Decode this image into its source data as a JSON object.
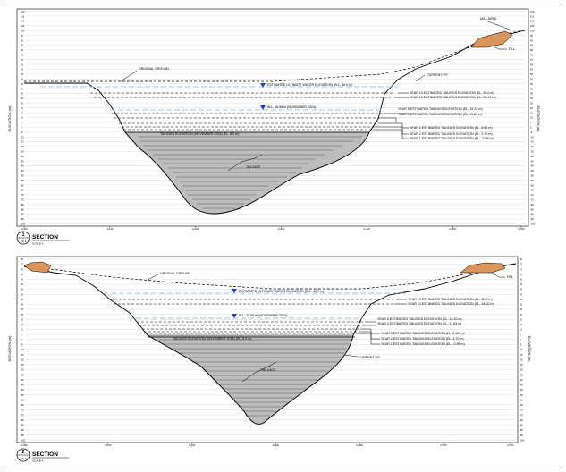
{
  "sections": [
    {
      "id": "1",
      "title": "SECTION",
      "ref": "FIG 1",
      "scale": "SCALE A",
      "y_axis_label": "ELEVATION (m)",
      "y_ticks": [
        "120",
        "115",
        "110",
        "105",
        "100",
        "95",
        "90",
        "85",
        "80",
        "75",
        "70",
        "65",
        "60",
        "55",
        "50",
        "45",
        "40",
        "35",
        "30",
        "25",
        "20",
        "15",
        "10",
        "5",
        "0",
        "-5",
        "-10",
        "-15",
        "-20",
        "-25",
        "-30",
        "-35",
        "-40",
        "-45",
        "-50",
        "-55",
        "-60",
        "-65",
        "-70",
        "-75",
        "-80",
        "-85",
        "-90",
        "-95",
        "-100"
      ],
      "x_ticks": [
        "0+000",
        "0+100",
        "0+200",
        "0+300",
        "0+400",
        "0+500",
        "0+520"
      ],
      "labels": {
        "original_ground": "ORIGINAL GROUND",
        "mill_area": "MILL AREA",
        "fill": "FILL",
        "current_pit": "CURRENT PIT",
        "ultimate_water": "ESTIMATED ULTIMATE WATER ELEVATION (W.L. 46.0 m)",
        "wl_nov": "W.L. 18.98 m (NOVEMBER 2024)",
        "tailings_nov": "TAILINGS ELEVATION (NOVEMBER 2024) (EL. 8.0 m)",
        "tailings": "TAILINGS"
      },
      "year_labels": [
        "YEAR 13 ESTIMATED TAILINGS ELEVATION (EL. 30.0 m)",
        "YEAR 10 ESTIMATED TAILINGS ELEVATION (EL. 28.00 m)",
        "YEAR 5 ESTIMATED TAILINGS ELEVATION (EL. 15.20 m)",
        "YEAR 4 ESTIMATED TAILINGS ELEVATION (EL. 11.63 m)",
        "YEAR 3 ESTIMATED TAILINGS ELEVATION (EL. 8.66 m)",
        "YEAR 2 ESTIMATED TAILINGS ELEVATION (EL. 3.70 m)",
        "YEAR 1 ESTIMATED TAILINGS ELEVATION (EL. -0.96 m)"
      ]
    },
    {
      "id": "2",
      "title": "SECTION",
      "ref": "FIG 2",
      "scale": "SCALE A",
      "y_axis_label": "ELEVATION (m)",
      "y_ticks": [
        "80",
        "75",
        "70",
        "65",
        "60",
        "55",
        "50",
        "45",
        "40",
        "35",
        "30",
        "25",
        "20",
        "15",
        "10",
        "5",
        "0",
        "-5",
        "-10",
        "-15",
        "-20",
        "-25",
        "-30",
        "-35",
        "-40",
        "-45",
        "-50",
        "-55",
        "-60",
        "-65",
        "-70",
        "-75",
        "-80",
        "-85",
        "-90",
        "-95",
        "-100"
      ],
      "x_ticks": [
        "0+000",
        "0+100",
        "0+200",
        "0+300",
        "0+400",
        "0+500",
        "0+570"
      ],
      "labels": {
        "original_ground": "ORIGINAL GROUND",
        "fill": "FILL",
        "current_pit": "CURRENT PIT",
        "ultimate_water": "ESTIMATED ULTIMATE WATER ELEVATION (W.L. 46.0 m)",
        "wl_nov": "W.L. 18.98 m (NOVEMBER 2024)",
        "tailings_nov": "TAILINGS ELEVATION (NOVEMBER 2024) (EL. 8.0 m)",
        "tailings": "TAILINGS"
      },
      "year_labels": [
        "YEAR 13 ESTIMATED TAILINGS ELEVATION (EL. 30.0 m)",
        "YEAR 10 ESTIMATED TAILINGS ELEVATION (EL. 28.00 m)",
        "YEAR 5 ESTIMATED TAILINGS ELEVATION (EL. 15.20 m)",
        "YEAR 4 ESTIMATED TAILINGS ELEVATION (EL. 11.63 m)",
        "YEAR 3 ESTIMATED TAILINGS ELEVATION (EL. 8.66 m)",
        "YEAR 2 ESTIMATED TAILINGS ELEVATION (EL. 3.70 m)",
        "YEAR 1 ESTIMATED TAILINGS ELEVATION (EL. -0.96 m)"
      ]
    }
  ],
  "colors": {
    "tailings": "#bdbdbd",
    "fill": "#d9955a",
    "water": "#1e3fd0",
    "water_line": "#9fc6e8",
    "grid": "#d0d0d0"
  }
}
